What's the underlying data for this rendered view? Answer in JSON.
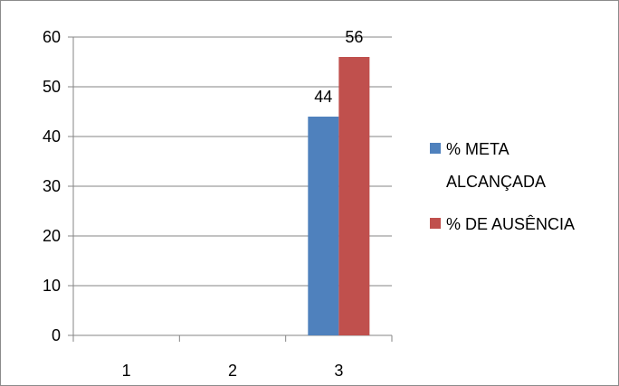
{
  "chart_data": {
    "type": "bar",
    "categories": [
      "1",
      "2",
      "3"
    ],
    "series": [
      {
        "name": "% META ALCANÇADA",
        "values": [
          null,
          null,
          44
        ],
        "data_labels": [
          "",
          "",
          "44"
        ]
      },
      {
        "name": "% DE AUSÊNCIA",
        "values": [
          null,
          null,
          56
        ],
        "data_labels": [
          "",
          "",
          "56"
        ]
      }
    ],
    "ylim": [
      0,
      60
    ],
    "yticks": [
      "0",
      "10",
      "20",
      "30",
      "40",
      "50",
      "60"
    ],
    "grid": true,
    "legend_position": "right",
    "colors": {
      "series_1": "#4f81bd",
      "series_2": "#c0504d"
    },
    "legend": {
      "line1": "% META",
      "line2": "ALCANÇADA",
      "line3": "% DE AUSÊNCIA"
    }
  }
}
